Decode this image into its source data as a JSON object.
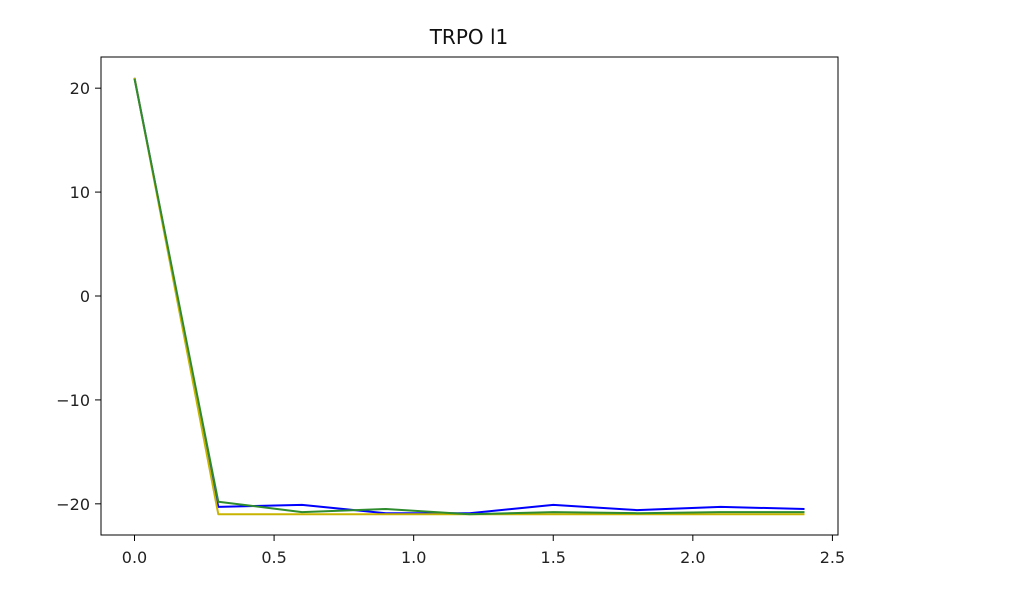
{
  "chart_data": {
    "type": "line",
    "title": "TRPO l1",
    "xlabel": "",
    "ylabel": "",
    "xlim": [
      -0.12,
      2.52
    ],
    "ylim": [
      -23,
      23
    ],
    "xticks": [
      0.0,
      0.5,
      1.0,
      1.5,
      2.0,
      2.5
    ],
    "xtick_labels": [
      "0.0",
      "0.5",
      "1.0",
      "1.5",
      "2.0",
      "2.5"
    ],
    "yticks": [
      20,
      10,
      0,
      -10,
      -20
    ],
    "ytick_labels": [
      "20",
      "10",
      "0",
      "−10",
      "−20"
    ],
    "grid": false,
    "x": [
      0.0,
      0.3,
      0.6,
      0.9,
      1.2,
      1.5,
      1.8,
      2.1,
      2.4
    ],
    "series": [
      {
        "color": "#0000ff",
        "values": [
          21.0,
          -20.3,
          -20.1,
          -20.9,
          -20.9,
          -20.1,
          -20.6,
          -20.3,
          -20.5
        ]
      },
      {
        "color": "#c8b400",
        "values": [
          21.0,
          -21.0,
          -21.0,
          -21.0,
          -21.0,
          -21.0,
          -21.0,
          -21.0,
          -21.0
        ]
      },
      {
        "color": "#2e8b2e",
        "values": [
          20.9,
          -19.8,
          -20.8,
          -20.5,
          -21.0,
          -20.8,
          -20.9,
          -20.8,
          -20.8
        ]
      }
    ]
  }
}
